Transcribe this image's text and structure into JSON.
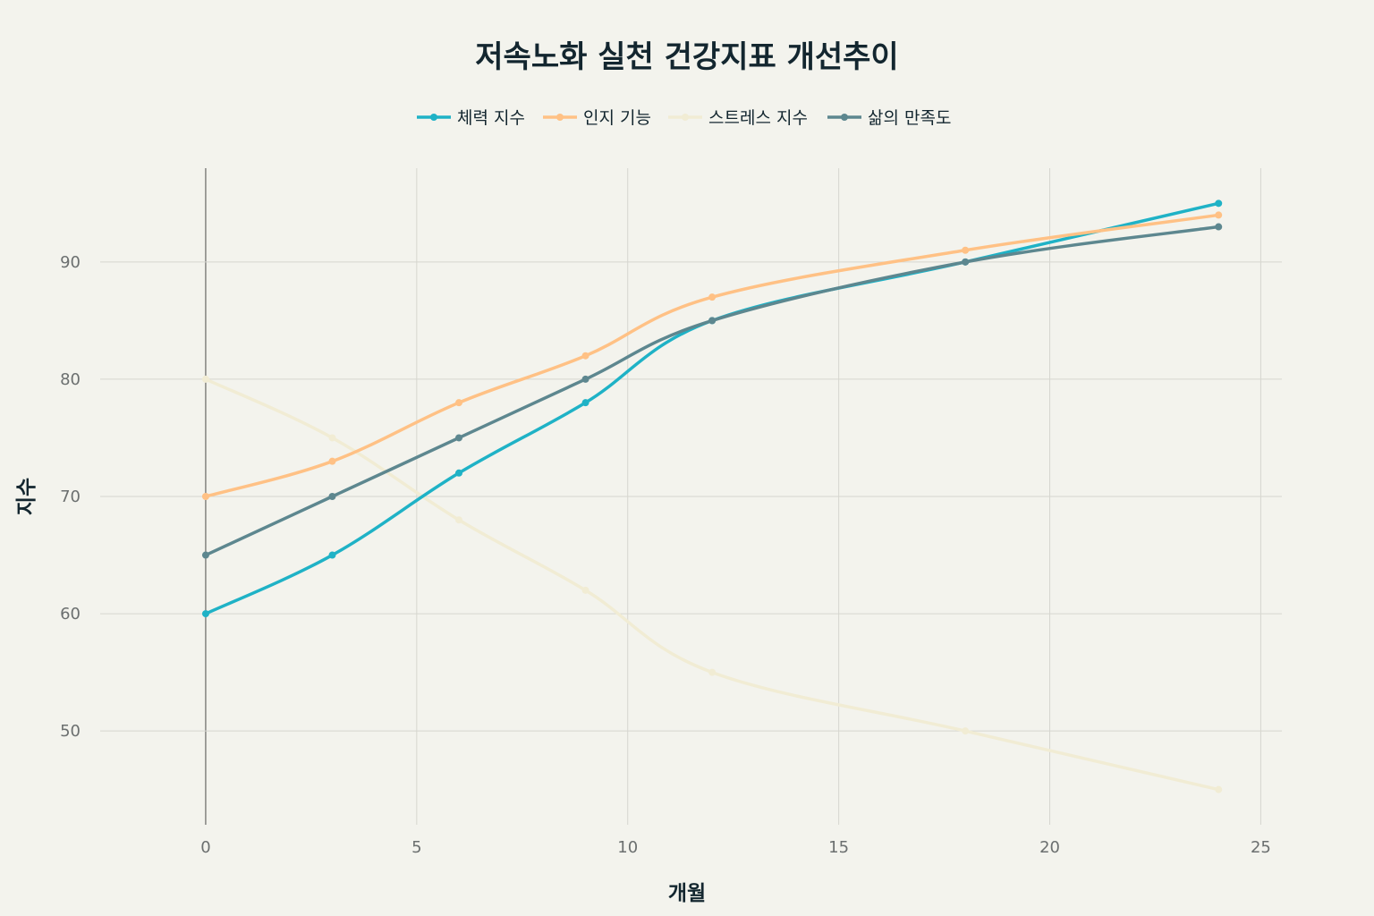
{
  "chart_data": {
    "type": "line",
    "title": "저속노화 실천 건강지표 개선추이",
    "xlabel": "개월",
    "ylabel": "지수",
    "x": [
      0,
      3,
      6,
      9,
      12,
      18,
      24
    ],
    "xlim": [
      -2.5,
      25.5
    ],
    "ylim": [
      42,
      98
    ],
    "xticks": [
      0,
      5,
      10,
      15,
      20,
      25
    ],
    "yticks": [
      50,
      60,
      70,
      80,
      90
    ],
    "grid": true,
    "legend_position": "top-center",
    "series": [
      {
        "name": "체력 지수",
        "color": "#1fb2c6",
        "values": [
          60,
          65,
          72,
          78,
          85,
          90,
          95
        ]
      },
      {
        "name": "인지 기능",
        "color": "#ffc185",
        "values": [
          70,
          73,
          78,
          82,
          87,
          91,
          94
        ]
      },
      {
        "name": "스트레스 지수",
        "color": "#f1ecd4",
        "values": [
          80,
          75,
          68,
          62,
          55,
          50,
          45
        ]
      },
      {
        "name": "삶의 만족도",
        "color": "#5d878f",
        "values": [
          65,
          70,
          75,
          80,
          85,
          90,
          93
        ]
      }
    ]
  }
}
